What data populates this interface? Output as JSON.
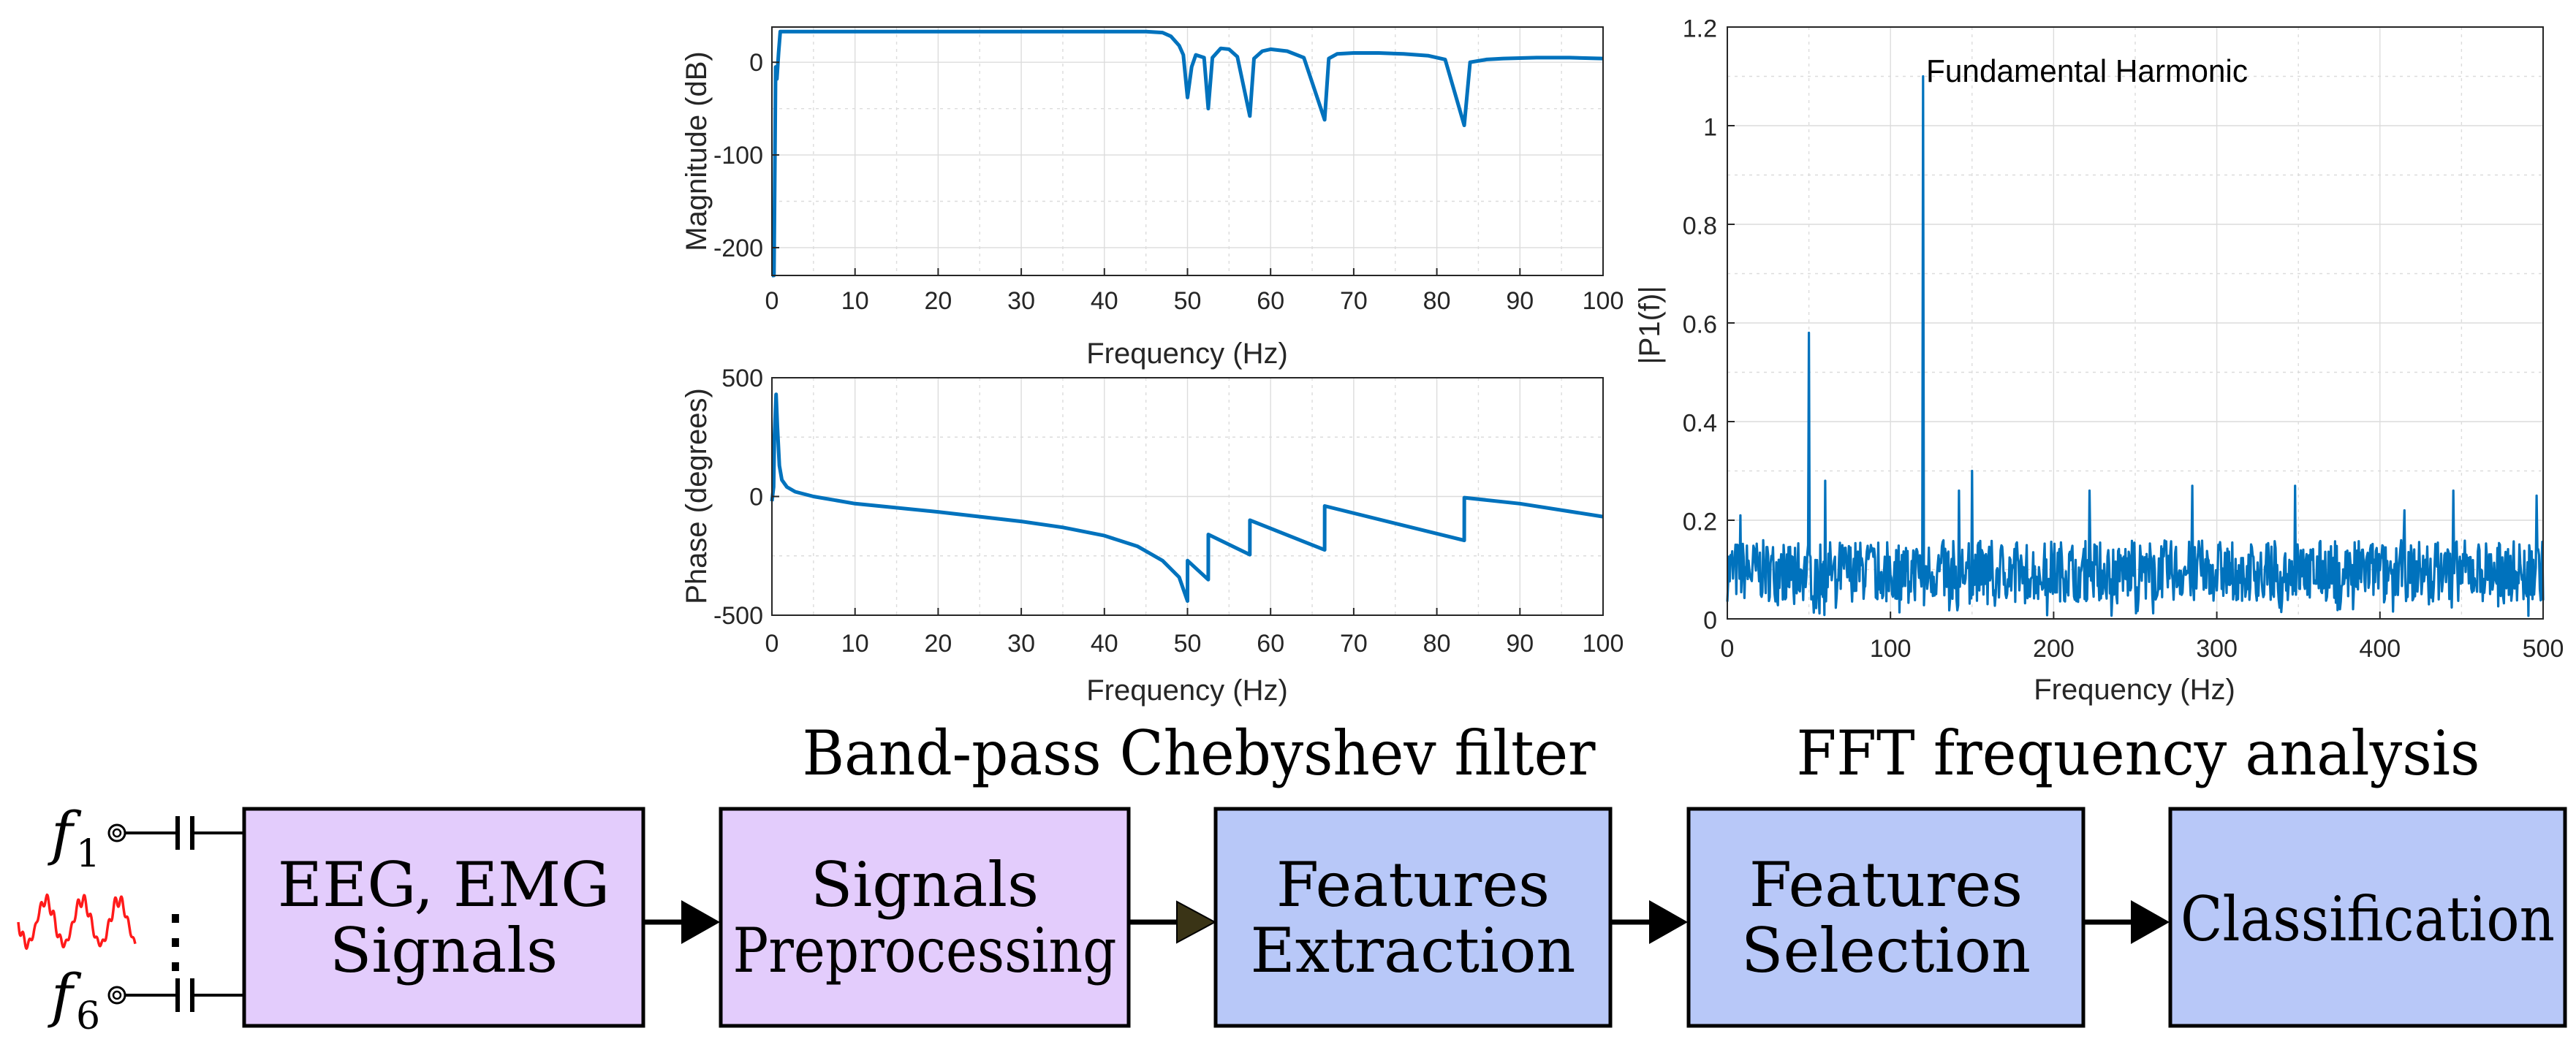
{
  "chart_data": [
    {
      "id": "magnitude",
      "type": "line",
      "xlabel": "Frequency (Hz)",
      "ylabel": "Magnitude (dB)",
      "xlim": [
        0,
        100
      ],
      "ylim": [
        -230,
        38
      ],
      "x_ticks": [
        0,
        10,
        20,
        30,
        40,
        50,
        60,
        70,
        80,
        90,
        100
      ],
      "y_ticks": [
        0,
        -100,
        -200
      ],
      "grid": true,
      "series": [
        {
          "name": "magnitude",
          "x": [
            0,
            0.25,
            0.45,
            0.6,
            0.8,
            1,
            2,
            10,
            20,
            30,
            40,
            45,
            47,
            48,
            49,
            49.5,
            50,
            50.5,
            51,
            52,
            52.5,
            53,
            54,
            55,
            56,
            57.5,
            58,
            59,
            60,
            62,
            64,
            66.5,
            67,
            68,
            70,
            73,
            76,
            79,
            81,
            83.3,
            84,
            86,
            88,
            92,
            96,
            100
          ],
          "y": [
            -230,
            -230,
            -5,
            -18,
            10,
            33,
            33,
            33,
            33,
            33,
            33,
            33,
            32,
            28,
            18,
            8,
            -38,
            -5,
            8,
            5,
            -50,
            5,
            15,
            14,
            6,
            -58,
            4,
            12,
            14,
            12,
            5,
            -62,
            4,
            9,
            10,
            10,
            9,
            7,
            3,
            -68,
            0,
            3,
            4,
            5,
            5,
            4
          ]
        }
      ]
    },
    {
      "id": "phase",
      "type": "line",
      "xlabel": "Frequency (Hz)",
      "ylabel": "Phase (degrees)",
      "xlim": [
        0,
        100
      ],
      "ylim": [
        -500,
        500
      ],
      "x_ticks": [
        0,
        10,
        20,
        30,
        40,
        50,
        60,
        70,
        80,
        90,
        100
      ],
      "y_ticks": [
        500,
        0,
        -500
      ],
      "grid": true,
      "series": [
        {
          "name": "phase",
          "x": [
            0,
            0.2,
            0.3,
            0.5,
            0.65,
            0.9,
            1.2,
            1.8,
            2.8,
            5,
            10,
            20,
            30,
            35,
            40,
            44,
            47,
            49,
            50,
            50.01,
            52.5,
            52.51,
            57.5,
            57.51,
            66.5,
            66.51,
            83.3,
            83.31,
            90,
            100
          ],
          "y": [
            -20,
            40,
            250,
            430,
            300,
            130,
            70,
            40,
            20,
            0,
            -30,
            -65,
            -105,
            -130,
            -165,
            -210,
            -270,
            -340,
            -440,
            -270,
            -350,
            -160,
            -245,
            -100,
            -225,
            -40,
            -185,
            -5,
            -30,
            -85
          ]
        }
      ]
    },
    {
      "id": "fft",
      "type": "line",
      "xlabel": "Frequency (Hz)",
      "ylabel": "|P1(f)|",
      "xlim": [
        0,
        500
      ],
      "ylim": [
        0,
        1.2
      ],
      "x_ticks": [
        0,
        100,
        200,
        300,
        400,
        500
      ],
      "y_ticks": [
        0,
        0.2,
        0.4,
        0.6,
        0.8,
        1,
        1.2
      ],
      "grid": true,
      "annotation": {
        "text": "Fundamental Harmonic",
        "x": 120,
        "y": 1.1
      },
      "series": [
        {
          "name": "|P1(f)|",
          "noise_level": 0.1,
          "noise_seed": 7,
          "n_points": 1000,
          "peaks": [
            {
              "x": 50,
              "y": 0.58
            },
            {
              "x": 120,
              "y": 1.1
            },
            {
              "x": 60,
              "y": 0.28
            },
            {
              "x": 150,
              "y": 0.3
            },
            {
              "x": 142,
              "y": 0.26
            },
            {
              "x": 222,
              "y": 0.26
            },
            {
              "x": 285,
              "y": 0.27
            },
            {
              "x": 348,
              "y": 0.27
            },
            {
              "x": 445,
              "y": 0.26
            },
            {
              "x": 496,
              "y": 0.25
            },
            {
              "x": 415,
              "y": 0.22
            },
            {
              "x": 8,
              "y": 0.21
            }
          ]
        }
      ]
    }
  ],
  "captions": {
    "filter": "Band-pass Chebyshev filter",
    "fft": "FFT frequency analysis"
  },
  "inputs": {
    "top": {
      "letter": "f",
      "index": "1"
    },
    "bottom": {
      "letter": "f",
      "index": "6"
    },
    "dots": "⋮"
  },
  "pipeline": [
    {
      "id": "eeg",
      "lines": [
        "EEG, EMG",
        "Signals"
      ],
      "color": "#e3ccfc"
    },
    {
      "id": "preproc",
      "lines": [
        "Signals",
        "Preprocessing"
      ],
      "color": "#e3ccfc"
    },
    {
      "id": "extract",
      "lines": [
        "Features",
        "Extraction"
      ],
      "color": "#b8c8f8"
    },
    {
      "id": "select",
      "lines": [
        "Features",
        "Selection"
      ],
      "color": "#b8c8f8"
    },
    {
      "id": "classify",
      "lines": [
        "Classification"
      ],
      "color": "#b8c8f8"
    }
  ],
  "colors": {
    "line": "#0072bd",
    "signal": "#ff1a1a",
    "arrow": "#000000",
    "arrow_olive": "#3a3416"
  }
}
